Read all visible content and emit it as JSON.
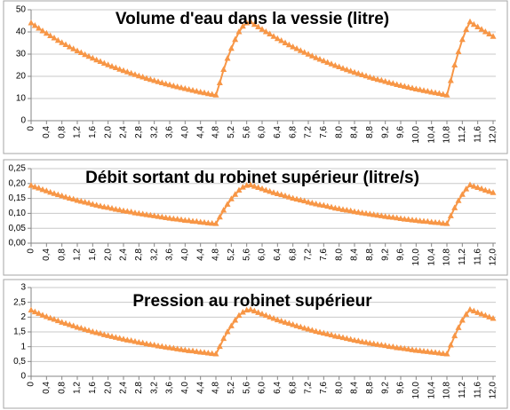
{
  "chart_data": [
    {
      "type": "line",
      "title": "Volume d'eau dans la vessie (litre)",
      "color": "#f79646",
      "marker": "triangle",
      "grid": true,
      "ylim": [
        0,
        50
      ],
      "yticks": [
        0,
        10,
        20,
        30,
        40,
        50
      ],
      "categories": [
        "0",
        null,
        null,
        null,
        "0,4",
        null,
        null,
        null,
        "0,8",
        null,
        null,
        null,
        "1,2",
        null,
        null,
        null,
        "1,6",
        null,
        null,
        null,
        "2,0",
        null,
        null,
        null,
        "2,4",
        null,
        null,
        null,
        "2,8",
        null,
        null,
        null,
        "3,2",
        null,
        null,
        null,
        "3,6",
        null,
        null,
        null,
        "4,0",
        null,
        null,
        null,
        "4,4",
        null,
        null,
        null,
        "4,8",
        null,
        null,
        null,
        "5,2",
        null,
        null,
        null,
        "5,6",
        null,
        null,
        null,
        "6,0",
        null,
        null,
        null,
        "6,4",
        null,
        null,
        null,
        "6,8",
        null,
        null,
        null,
        "7,2",
        null,
        null,
        null,
        "7,6",
        null,
        null,
        null,
        "8,0",
        null,
        null,
        null,
        "8,4",
        null,
        null,
        null,
        "8,8",
        null,
        null,
        null,
        "9,2",
        null,
        null,
        null,
        "9,6",
        null,
        null,
        null,
        "10,0",
        null,
        null,
        null,
        "10,4",
        null,
        null,
        null,
        "10,8",
        null,
        null,
        null,
        "11,2",
        null,
        null,
        null,
        "11,6",
        null,
        null,
        null,
        "12,0"
      ],
      "values": [
        44.0,
        42.8,
        41.6,
        40.4,
        39.3,
        38.2,
        37.2,
        36.1,
        35.1,
        34.2,
        33.2,
        32.3,
        31.4,
        30.6,
        29.7,
        28.9,
        28.1,
        27.3,
        26.6,
        25.8,
        25.1,
        24.4,
        23.8,
        23.1,
        22.5,
        21.9,
        21.3,
        20.7,
        20.1,
        19.6,
        19.0,
        18.5,
        18.0,
        17.5,
        17.0,
        16.5,
        16.1,
        15.6,
        15.2,
        14.8,
        14.4,
        14.0,
        13.6,
        13.2,
        12.8,
        12.5,
        12.1,
        11.8,
        11.5,
        17,
        23,
        28,
        32.5,
        36.5,
        40,
        42.5,
        44.0,
        44.5,
        43.3,
        42.2,
        41.1,
        40.0,
        39.0,
        37.9,
        36.9,
        36.0,
        35.0,
        34.1,
        33.2,
        32.4,
        31.5,
        30.7,
        29.9,
        29.1,
        28.3,
        27.6,
        26.9,
        26.2,
        25.5,
        24.8,
        24.2,
        23.5,
        22.9,
        22.3,
        21.7,
        21.2,
        20.6,
        20.1,
        19.5,
        19.0,
        18.5,
        18.1,
        17.6,
        17.1,
        16.7,
        16.2,
        15.8,
        15.4,
        15.0,
        14.6,
        14.2,
        13.9,
        13.5,
        13.2,
        12.8,
        12.5,
        12.2,
        11.8,
        11.5,
        18,
        25,
        31,
        36.5,
        41,
        44.5,
        43.3,
        42.2,
        41.1,
        40.0,
        39.0,
        37.9
      ]
    },
    {
      "type": "line",
      "title": "Débit sortant du robinet supérieur (litre/s)",
      "color": "#f79646",
      "marker": "triangle",
      "grid": true,
      "ylim": [
        0,
        0.25
      ],
      "yticks": [
        {
          "value": 0,
          "label": "0,00"
        },
        {
          "value": 0.05,
          "label": "0,05"
        },
        {
          "value": 0.1,
          "label": "0,10"
        },
        {
          "value": 0.15,
          "label": "0,15"
        },
        {
          "value": 0.2,
          "label": "0,20"
        },
        {
          "value": 0.25,
          "label": "0,25"
        }
      ],
      "categories": [
        "0",
        null,
        null,
        null,
        "0,4",
        null,
        null,
        null,
        "0,8",
        null,
        null,
        null,
        "1,2",
        null,
        null,
        null,
        "1,6",
        null,
        null,
        null,
        "2,0",
        null,
        null,
        null,
        "2,4",
        null,
        null,
        null,
        "2,8",
        null,
        null,
        null,
        "3,2",
        null,
        null,
        null,
        "3,6",
        null,
        null,
        null,
        "4,0",
        null,
        null,
        null,
        "4,4",
        null,
        null,
        null,
        "4,8",
        null,
        null,
        null,
        "5,2",
        null,
        null,
        null,
        "5,6",
        null,
        null,
        null,
        "6,0",
        null,
        null,
        null,
        "6,4",
        null,
        null,
        null,
        "6,8",
        null,
        null,
        null,
        "7,2",
        null,
        null,
        null,
        "7,6",
        null,
        null,
        null,
        "8,0",
        null,
        null,
        null,
        "8,4",
        null,
        null,
        null,
        "8,8",
        null,
        null,
        null,
        "9,2",
        null,
        null,
        null,
        "9,6",
        null,
        null,
        null,
        "10,0",
        null,
        null,
        null,
        "10,4",
        null,
        null,
        null,
        "10,8",
        null,
        null,
        null,
        "11,2",
        null,
        null,
        null,
        "11,6",
        null,
        null,
        null,
        "12,0"
      ],
      "values": [
        0.193,
        0.188,
        0.184,
        0.179,
        0.175,
        0.17,
        0.166,
        0.162,
        0.158,
        0.154,
        0.15,
        0.147,
        0.143,
        0.14,
        0.137,
        0.134,
        0.13,
        0.127,
        0.124,
        0.121,
        0.119,
        0.116,
        0.113,
        0.111,
        0.108,
        0.106,
        0.104,
        0.101,
        0.099,
        0.097,
        0.095,
        0.093,
        0.091,
        0.089,
        0.087,
        0.085,
        0.083,
        0.081,
        0.08,
        0.078,
        0.076,
        0.075,
        0.073,
        0.072,
        0.07,
        0.069,
        0.067,
        0.066,
        0.065,
        0.087,
        0.11,
        0.13,
        0.148,
        0.163,
        0.177,
        0.187,
        0.193,
        0.195,
        0.19,
        0.186,
        0.182,
        0.177,
        0.173,
        0.169,
        0.165,
        0.162,
        0.158,
        0.154,
        0.15,
        0.147,
        0.144,
        0.141,
        0.137,
        0.134,
        0.131,
        0.128,
        0.126,
        0.123,
        0.12,
        0.117,
        0.115,
        0.112,
        0.11,
        0.108,
        0.105,
        0.103,
        0.101,
        0.099,
        0.097,
        0.095,
        0.093,
        0.091,
        0.089,
        0.087,
        0.086,
        0.084,
        0.082,
        0.08,
        0.079,
        0.077,
        0.076,
        0.074,
        0.073,
        0.072,
        0.07,
        0.069,
        0.068,
        0.066,
        0.065,
        0.091,
        0.118,
        0.142,
        0.163,
        0.181,
        0.195,
        0.19,
        0.186,
        0.182,
        0.177,
        0.173,
        0.169
      ]
    },
    {
      "type": "line",
      "title": "Pression au robinet supérieur",
      "color": "#f79646",
      "marker": "triangle",
      "grid": true,
      "ylim": [
        0,
        3
      ],
      "yticks": [
        0,
        {
          "value": 0.5,
          "label": "0,5"
        },
        1,
        {
          "value": 1.5,
          "label": "1,5"
        },
        2,
        {
          "value": 2.5,
          "label": "2,5"
        },
        3
      ],
      "categories": [
        "0",
        null,
        null,
        null,
        "0,4",
        null,
        null,
        null,
        "0,8",
        null,
        null,
        null,
        "1,2",
        null,
        null,
        null,
        "1,6",
        null,
        null,
        null,
        "2,0",
        null,
        null,
        null,
        "2,4",
        null,
        null,
        null,
        "2,8",
        null,
        null,
        null,
        "3,2",
        null,
        null,
        null,
        "3,6",
        null,
        null,
        null,
        "4,0",
        null,
        null,
        null,
        "4,4",
        null,
        null,
        null,
        "4,8",
        null,
        null,
        null,
        "5,2",
        null,
        null,
        null,
        "5,6",
        null,
        null,
        null,
        "6,0",
        null,
        null,
        null,
        "6,4",
        null,
        null,
        null,
        "6,8",
        null,
        null,
        null,
        "7,2",
        null,
        null,
        null,
        "7,6",
        null,
        null,
        null,
        "8,0",
        null,
        null,
        null,
        "8,4",
        null,
        null,
        null,
        "8,8",
        null,
        null,
        null,
        "9,2",
        null,
        null,
        null,
        "9,6",
        null,
        null,
        null,
        "10,0",
        null,
        null,
        null,
        "10,4",
        null,
        null,
        null,
        "10,8",
        null,
        null,
        null,
        "11,2",
        null,
        null,
        null,
        "11,6",
        null,
        null,
        null,
        "12,0"
      ],
      "values": [
        2.23,
        2.17,
        2.12,
        2.06,
        2.01,
        1.96,
        1.92,
        1.87,
        1.82,
        1.78,
        1.74,
        1.7,
        1.65,
        1.62,
        1.58,
        1.54,
        1.5,
        1.47,
        1.44,
        1.4,
        1.37,
        1.34,
        1.31,
        1.28,
        1.25,
        1.22,
        1.2,
        1.17,
        1.14,
        1.12,
        1.09,
        1.07,
        1.05,
        1.02,
        1.0,
        0.98,
        0.96,
        0.94,
        0.92,
        0.9,
        0.88,
        0.86,
        0.85,
        0.83,
        0.81,
        0.8,
        0.78,
        0.76,
        0.75,
        1.0,
        1.27,
        1.5,
        1.7,
        1.89,
        2.05,
        2.16,
        2.23,
        2.25,
        2.2,
        2.15,
        2.1,
        2.05,
        2.0,
        1.95,
        1.9,
        1.86,
        1.82,
        1.78,
        1.74,
        1.7,
        1.66,
        1.62,
        1.59,
        1.55,
        1.51,
        1.48,
        1.45,
        1.42,
        1.39,
        1.35,
        1.33,
        1.3,
        1.27,
        1.24,
        1.21,
        1.19,
        1.16,
        1.14,
        1.11,
        1.09,
        1.07,
        1.05,
        1.03,
        1.0,
        0.99,
        0.96,
        0.95,
        0.93,
        0.91,
        0.89,
        0.87,
        0.86,
        0.84,
        0.83,
        0.81,
        0.8,
        0.78,
        0.76,
        0.75,
        1.05,
        1.36,
        1.64,
        1.89,
        2.09,
        2.25,
        2.2,
        2.15,
        2.1,
        2.05,
        2.0,
        1.95
      ]
    }
  ]
}
